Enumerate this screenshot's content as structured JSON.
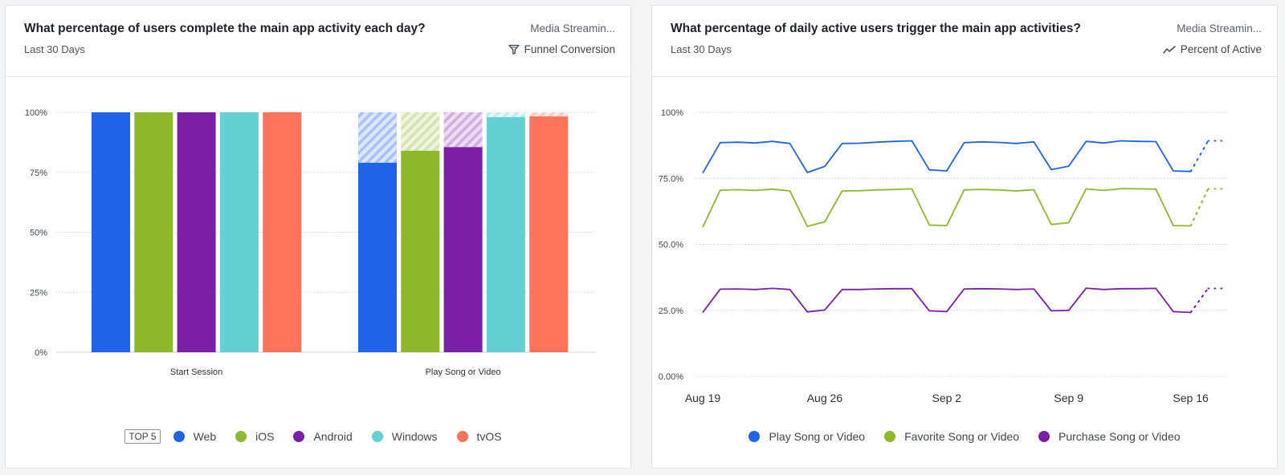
{
  "left_card": {
    "title": "What percentage of users complete the main app activity each day?",
    "subtitle": "Last 30 Days",
    "source": "Media Streamin...",
    "metric_label": "Funnel Conversion",
    "metric_icon": "funnel-icon",
    "legend_badge": "TOP 5"
  },
  "right_card": {
    "title": "What percentage of daily active users trigger the main app activities?",
    "subtitle": "Last 30 Days",
    "source": "Media Streamin...",
    "metric_label": "Percent of Active",
    "metric_icon": "trend-line-icon"
  },
  "chart_data": [
    {
      "type": "bar",
      "title": "What percentage of users complete the main app activity each day?",
      "categories": [
        "Start Session",
        "Play Song or Video"
      ],
      "y_ticks": [
        "0%",
        "25%",
        "50%",
        "75%",
        "100%"
      ],
      "ylim": [
        0,
        100
      ],
      "grid": true,
      "legend_position": "bottom",
      "series": [
        {
          "name": "Web",
          "color": "#1f63e8",
          "values": [
            100,
            79
          ]
        },
        {
          "name": "iOS",
          "color": "#8db82c",
          "values": [
            100,
            84
          ]
        },
        {
          "name": "Android",
          "color": "#7c1fa8",
          "values": [
            100,
            85.5
          ]
        },
        {
          "name": "Windows",
          "color": "#63d1d4",
          "values": [
            100,
            98
          ]
        },
        {
          "name": "tvOS",
          "color": "#ff735a",
          "values": [
            100,
            98.3
          ]
        }
      ]
    },
    {
      "type": "line",
      "title": "What percentage of daily active users trigger the main app activities?",
      "x_ticks": [
        "Aug 19",
        "Aug 26",
        "Sep 2",
        "Sep 9",
        "Sep 16"
      ],
      "x": [
        "Aug 19",
        "Aug 20",
        "Aug 21",
        "Aug 22",
        "Aug 23",
        "Aug 24",
        "Aug 25",
        "Aug 26",
        "Aug 27",
        "Aug 28",
        "Aug 29",
        "Aug 30",
        "Aug 31",
        "Sep 1",
        "Sep 2",
        "Sep 3",
        "Sep 4",
        "Sep 5",
        "Sep 6",
        "Sep 7",
        "Sep 8",
        "Sep 9",
        "Sep 10",
        "Sep 11",
        "Sep 12",
        "Sep 13",
        "Sep 14",
        "Sep 15",
        "Sep 16",
        "Sep 17"
      ],
      "y_ticks": [
        "0.00%",
        "25.0%",
        "50.0%",
        "75.0%",
        "100%"
      ],
      "ylim": [
        0,
        100
      ],
      "grid": true,
      "legend_position": "bottom",
      "incomplete_last_point": true,
      "series": [
        {
          "name": "Play Song or Video",
          "color": "#1f63e8",
          "values": [
            77,
            88.5,
            88.7,
            88.4,
            89,
            88.2,
            77.2,
            79.5,
            88.2,
            88.3,
            88.7,
            89,
            89.2,
            78.2,
            77.8,
            88.5,
            88.8,
            88.6,
            88.2,
            88.8,
            78.3,
            79.6,
            89,
            88.4,
            89.2,
            89,
            88.9,
            77.8,
            77.6,
            89.2
          ]
        },
        {
          "name": "Favorite Song or Video",
          "color": "#8db82c",
          "values": [
            56.5,
            70.5,
            70.7,
            70.4,
            70.9,
            70.2,
            56.8,
            58.5,
            70.2,
            70.3,
            70.6,
            70.8,
            71,
            57.3,
            57.1,
            70.6,
            70.8,
            70.6,
            70.2,
            70.7,
            57.5,
            58.2,
            71,
            70.4,
            71.1,
            71,
            70.9,
            57.1,
            57,
            71
          ]
        },
        {
          "name": "Purchase Song or Video",
          "color": "#7c1fa8",
          "values": [
            24.2,
            33,
            33.1,
            32.9,
            33.3,
            32.9,
            24.4,
            25.1,
            32.9,
            32.9,
            33.1,
            33.2,
            33.2,
            24.8,
            24.5,
            33.1,
            33.2,
            33.1,
            32.9,
            33.1,
            24.8,
            25,
            33.4,
            32.9,
            33.2,
            33.2,
            33.3,
            24.5,
            24.2,
            33.3
          ]
        }
      ]
    }
  ]
}
